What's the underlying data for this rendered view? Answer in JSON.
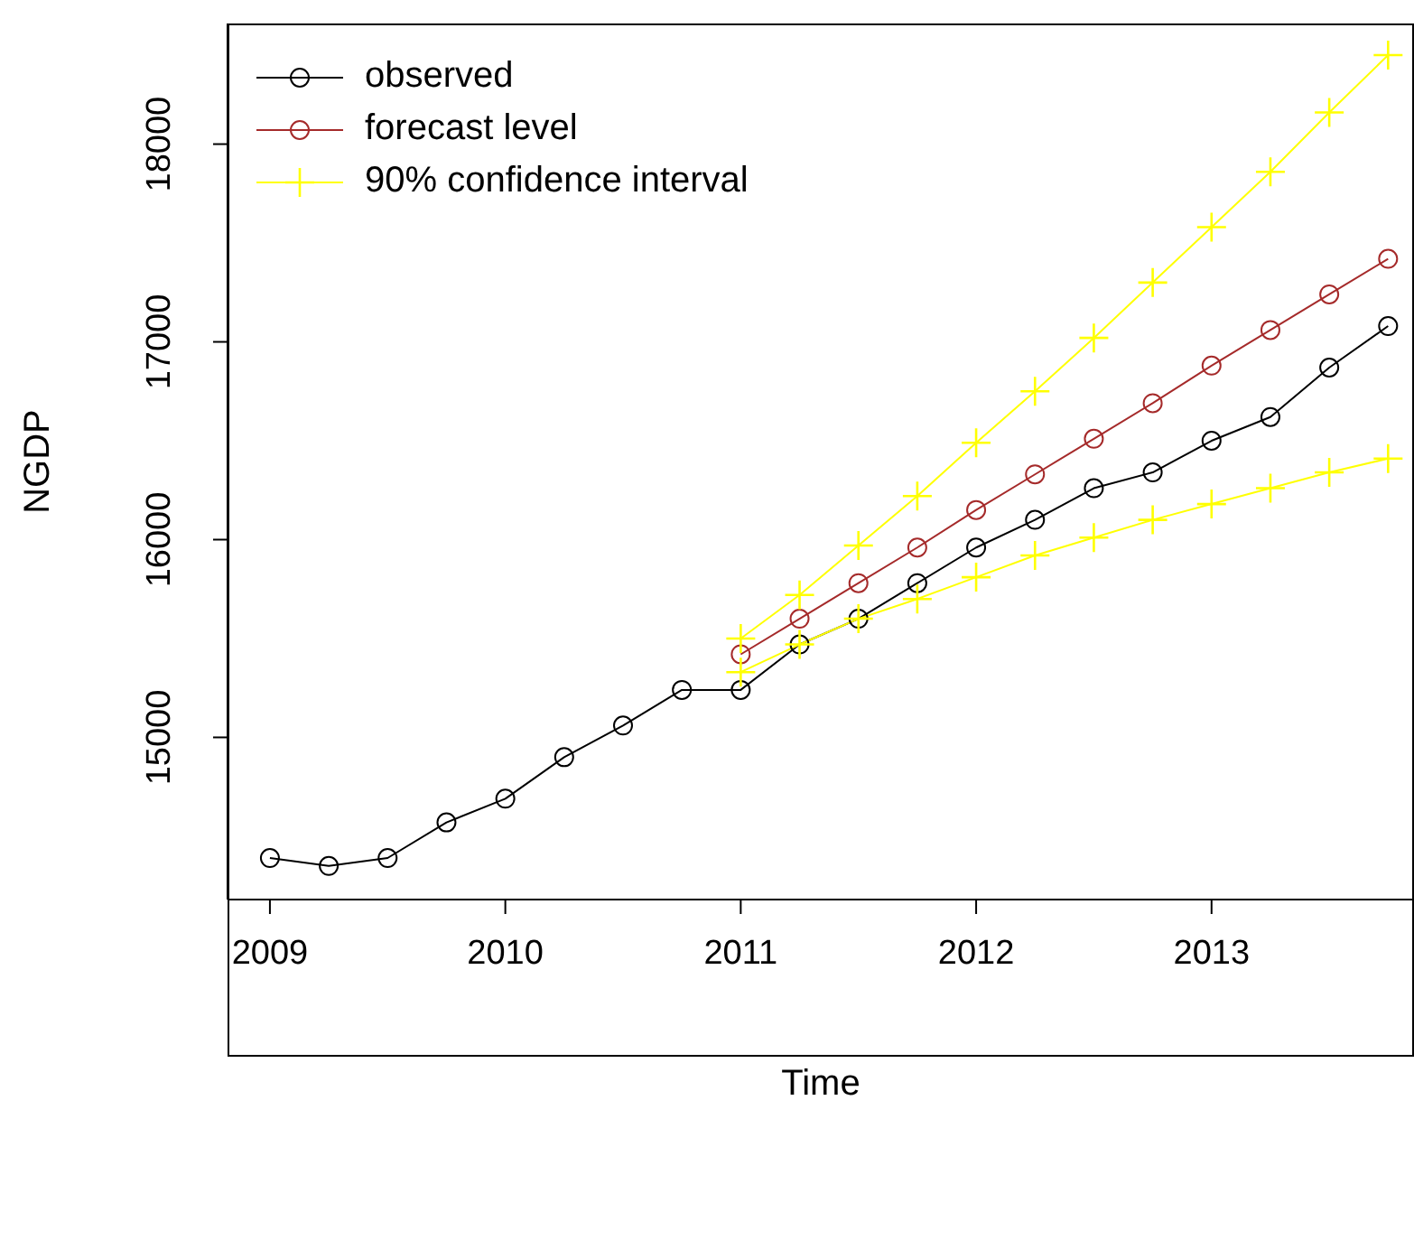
{
  "chart_data": {
    "type": "line",
    "xlabel": "Time",
    "ylabel": "NGDP",
    "xlim": [
      2008.82,
      2013.86
    ],
    "ylim": [
      14180,
      18610
    ],
    "xticks": [
      2009,
      2010,
      2011,
      2012,
      2013
    ],
    "yticks": [
      15000,
      16000,
      17000,
      18000
    ],
    "grid": false,
    "legend": "top left",
    "series": [
      {
        "name": "observed",
        "color": "#000000",
        "marker": "circle",
        "x": [
          2009,
          2009.25,
          2009.5,
          2009.75,
          2010,
          2010.25,
          2010.5,
          2010.75,
          2011,
          2011.25,
          2011.5,
          2011.75,
          2012,
          2012.25,
          2012.5,
          2012.75,
          2013,
          2013.25,
          2013.5,
          2013.75
        ],
        "values": [
          14390,
          14350,
          14390,
          14570,
          14690,
          14900,
          15060,
          15240,
          15240,
          15470,
          15600,
          15780,
          15960,
          16100,
          16260,
          16340,
          16500,
          16620,
          16870,
          17080
        ]
      },
      {
        "name": "forecast level",
        "color": "#a52a2a",
        "marker": "circle",
        "x": [
          2011,
          2011.25,
          2011.5,
          2011.75,
          2012,
          2012.25,
          2012.5,
          2012.75,
          2013,
          2013.25,
          2013.5,
          2013.75
        ],
        "values": [
          15420,
          15600,
          15780,
          15960,
          16150,
          16330,
          16510,
          16690,
          16880,
          17060,
          17240,
          17420
        ]
      },
      {
        "name": "90% confidence interval",
        "color": "#ffff00",
        "marker": "cross",
        "x": [
          2011,
          2011.25,
          2011.5,
          2011.75,
          2012,
          2012.25,
          2012.5,
          2012.75,
          2013,
          2013.25,
          2013.5,
          2013.75
        ],
        "values": [
          15500,
          15720,
          15970,
          16220,
          16490,
          16750,
          17020,
          17300,
          17580,
          17860,
          18160,
          18450
        ]
      },
      {
        "color": "#ffff00",
        "marker": "cross",
        "x": [
          2011,
          2011.25,
          2011.5,
          2011.75,
          2012,
          2012.25,
          2012.5,
          2012.75,
          2013,
          2013.25,
          2013.5,
          2013.75
        ],
        "values": [
          15330,
          15470,
          15600,
          15700,
          15810,
          15920,
          16010,
          16100,
          16180,
          16260,
          16340,
          16410
        ]
      }
    ]
  }
}
